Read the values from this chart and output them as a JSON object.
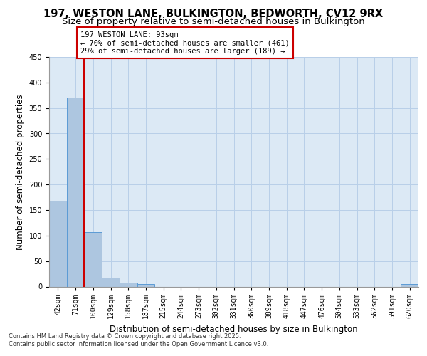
{
  "title_line1": "197, WESTON LANE, BULKINGTON, BEDWORTH, CV12 9RX",
  "title_line2": "Size of property relative to semi-detached houses in Bulkington",
  "xlabel": "Distribution of semi-detached houses by size in Bulkington",
  "ylabel": "Number of semi-detached properties",
  "bins": [
    "42sqm",
    "71sqm",
    "100sqm",
    "129sqm",
    "158sqm",
    "187sqm",
    "215sqm",
    "244sqm",
    "273sqm",
    "302sqm",
    "331sqm",
    "360sqm",
    "389sqm",
    "418sqm",
    "447sqm",
    "476sqm",
    "504sqm",
    "533sqm",
    "562sqm",
    "591sqm",
    "620sqm"
  ],
  "values": [
    168,
    370,
    107,
    18,
    7,
    5,
    0,
    0,
    0,
    0,
    0,
    0,
    0,
    0,
    0,
    0,
    0,
    0,
    0,
    0,
    5
  ],
  "bar_color": "#adc6e0",
  "bar_edge_color": "#5b9bd5",
  "vline_x_index": 2,
  "annotation_text": "197 WESTON LANE: 93sqm\n← 70% of semi-detached houses are smaller (461)\n29% of semi-detached houses are larger (189) →",
  "annotation_box_color": "#ffffff",
  "annotation_box_edge": "#cc0000",
  "vline_color": "#cc0000",
  "background_color": "#dce9f5",
  "ylim": [
    0,
    450
  ],
  "yticks": [
    0,
    50,
    100,
    150,
    200,
    250,
    300,
    350,
    400,
    450
  ],
  "footer_text": "Contains HM Land Registry data © Crown copyright and database right 2025.\nContains public sector information licensed under the Open Government Licence v3.0.",
  "title_fontsize": 10.5,
  "subtitle_fontsize": 9.5,
  "axis_label_fontsize": 8.5,
  "tick_fontsize": 7,
  "annotation_fontsize": 7.5,
  "footer_fontsize": 6
}
